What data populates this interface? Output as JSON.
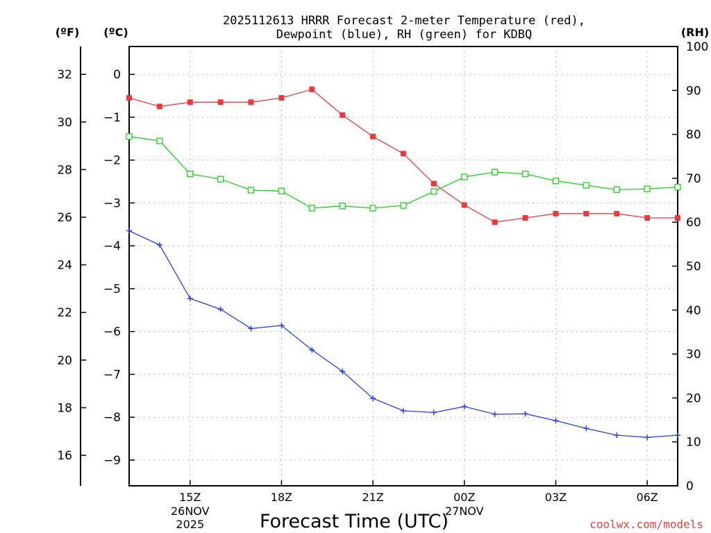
{
  "chart_data": {
    "type": "line",
    "title_lines": [
      "2025112613 HRRR Forecast 2-meter Temperature (red),",
      "Dewpoint (blue), RH (green) for KDBQ"
    ],
    "xlabel": "Forecast Time (UTC)",
    "credit": "coolwx.com/models",
    "unit_labels": {
      "fahrenheit": "(ºF)",
      "celsius": "(ºC)",
      "rh": "(RH)"
    },
    "x_hours": [
      13,
      14,
      15,
      16,
      17,
      18,
      19,
      20,
      21,
      22,
      23,
      24,
      25,
      26,
      27,
      28,
      29,
      30,
      31
    ],
    "x_ticks": [
      {
        "hour": 15,
        "label": "15Z"
      },
      {
        "hour": 18,
        "label": "18Z"
      },
      {
        "hour": 21,
        "label": "21Z"
      },
      {
        "hour": 24,
        "label": "00Z"
      },
      {
        "hour": 27,
        "label": "03Z"
      },
      {
        "hour": 30,
        "label": "06Z"
      }
    ],
    "date_labels": [
      {
        "hour": 15,
        "lines": [
          "26NOV",
          "2025"
        ]
      },
      {
        "hour": 24,
        "lines": [
          "27NOV"
        ]
      }
    ],
    "celsius_axis": {
      "range": [
        -9.6,
        0.65
      ],
      "ticks": [
        0,
        -1,
        -2,
        -3,
        -4,
        -5,
        -6,
        -7,
        -8,
        -9
      ]
    },
    "fahrenheit_axis": {
      "ticks": [
        32,
        30,
        28,
        26,
        24,
        22,
        20,
        18,
        16
      ]
    },
    "rh_axis": {
      "range": [
        0,
        100
      ],
      "ticks": [
        0,
        10,
        20,
        30,
        40,
        50,
        60,
        70,
        80,
        90,
        100
      ]
    },
    "series": [
      {
        "name": "Temperature",
        "color": "#e83a3a",
        "marker": "filled-square",
        "axis": "celsius",
        "values": [
          -0.55,
          -0.75,
          -0.65,
          -0.65,
          -0.65,
          -0.55,
          -0.35,
          -0.95,
          -1.45,
          -1.85,
          -2.55,
          -3.05,
          -3.45,
          -3.35,
          -3.25,
          -3.25,
          -3.25,
          -3.35,
          -3.35
        ]
      },
      {
        "name": "Dewpoint",
        "color": "#2a3fe0",
        "marker": "plus",
        "axis": "celsius",
        "values": [
          -3.65,
          -3.98,
          -5.23,
          -5.48,
          -5.93,
          -5.86,
          -6.43,
          -6.93,
          -7.56,
          -7.85,
          -7.89,
          -7.75,
          -7.93,
          -7.92,
          -8.08,
          -8.26,
          -8.42,
          -8.47,
          -8.42
        ]
      },
      {
        "name": "RH",
        "color": "#1ad11a",
        "marker": "open-square",
        "axis": "rh",
        "values": [
          79.5,
          78.5,
          71,
          69.8,
          67.3,
          67.1,
          63.2,
          63.7,
          63.2,
          63.8,
          67,
          70.3,
          71.4,
          71,
          69.4,
          68.4,
          67.4,
          67.6,
          68
        ]
      }
    ]
  }
}
